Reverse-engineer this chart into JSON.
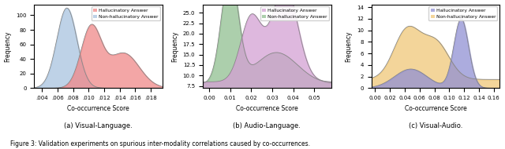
{
  "fig_width": 6.4,
  "fig_height": 1.9,
  "dpi": 100,
  "caption": "Figure 3: Validation experiments on spurious inter-modality correlations caused by co-occurrences.",
  "subplots": [
    {
      "subtitle": "(a) Visual-Language.",
      "xlabel": "Co-occurrence Score",
      "ylabel": "Frequency",
      "xlim": [
        0.003,
        0.0195
      ],
      "ylim": [
        0,
        115
      ],
      "yticks": [
        0,
        20,
        40,
        60,
        80,
        100
      ],
      "xticks": [
        0.004,
        0.006,
        0.008,
        0.01,
        0.012,
        0.014,
        0.016,
        0.018
      ],
      "xticklabels": [
        ".004",
        ".006",
        ".008",
        ".010",
        ".012",
        ".014",
        ".016",
        ".018"
      ],
      "hallucinatory_color": "#f08888",
      "nonhallucinatory_color": "#a8c4e0",
      "legend_labels": [
        "Hallucinatory Answer",
        "Non-hallucinatory Answer"
      ],
      "legend_loc": "upper right"
    },
    {
      "subtitle": "(b) Audio-Language.",
      "xlabel": "Co-occurrence Score",
      "ylabel": "Frequency",
      "xlim": [
        -0.003,
        0.058
      ],
      "ylim": [
        7.0,
        27.0
      ],
      "yticks": [
        7.5,
        10.0,
        12.5,
        15.0,
        17.5,
        20.0,
        22.5,
        25.0
      ],
      "xticks": [
        0.0,
        0.01,
        0.02,
        0.03,
        0.04,
        0.05
      ],
      "xticklabels": [
        "0.00",
        "0.01",
        "0.02",
        "0.03",
        "0.04",
        "0.05"
      ],
      "hallucinatory_color": "#d4a0d4",
      "nonhallucinatory_color": "#90c090",
      "legend_labels": [
        "Hallucinatory Answer",
        "Non-hallucinatory Answer"
      ],
      "legend_loc": "upper right"
    },
    {
      "subtitle": "(c) Visual-Audio.",
      "xlabel": "Co-occurrence Score",
      "ylabel": "Frequency",
      "xlim": [
        -0.005,
        0.168
      ],
      "ylim": [
        0,
        14.5
      ],
      "yticks": [
        0,
        2,
        4,
        6,
        8,
        10,
        12,
        14
      ],
      "xticks": [
        0.0,
        0.02,
        0.04,
        0.06,
        0.08,
        0.1,
        0.12,
        0.14,
        0.16
      ],
      "xticklabels": [
        "0.00",
        "0.02",
        "0.04",
        "0.06",
        "0.08",
        "0.10",
        "0.12",
        "0.14",
        "0.16"
      ],
      "hallucinatory_color": "#9090d4",
      "nonhallucinatory_color": "#f0c878",
      "legend_labels": [
        "Hallucinatory Answer",
        "Non-hallucinatory Answer"
      ],
      "legend_loc": "upper right"
    }
  ]
}
